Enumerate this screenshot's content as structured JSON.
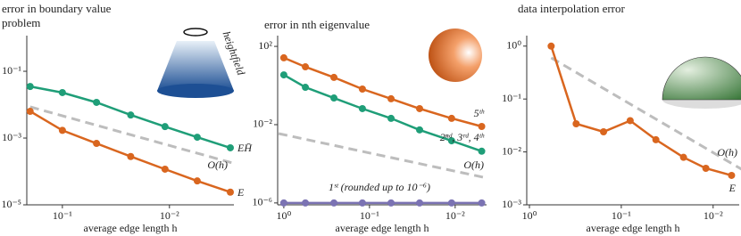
{
  "chart_data": [
    {
      "type": "line",
      "title": "error in boundary value problem",
      "xlabel": "average edge length h",
      "annotations": [
        "heightfield"
      ],
      "xlog": true,
      "ylog": true,
      "xlim": [
        0.215,
        0.0025
      ],
      "ylim": [
        1e-05,
        0.86
      ],
      "xticks": [
        {
          "value": 0.1,
          "label": "10⁻¹"
        },
        {
          "value": 0.01,
          "label": "10⁻²"
        }
      ],
      "yticks": [
        {
          "value": 0.1,
          "label": "10⁻¹"
        },
        {
          "value": 0.001,
          "label": "10⁻³"
        },
        {
          "value": 1e-05,
          "label": "10⁻⁵"
        }
      ],
      "series": [
        {
          "name": "EH̄",
          "color": "#1f9e78",
          "dashed": false,
          "x": [
            0.2,
            0.1,
            0.048,
            0.023,
            0.011,
            0.0055,
            0.0027
          ],
          "values": [
            0.035,
            0.023,
            0.0117,
            0.0049,
            0.0022,
            0.00106,
            0.00051
          ]
        },
        {
          "name": "O(h)",
          "color": "#bdbdbd",
          "dashed": true,
          "x": [
            0.2,
            0.0026
          ],
          "values": [
            0.0086,
            0.00018
          ]
        },
        {
          "name": "E",
          "color": "#d9661f",
          "dashed": false,
          "x": [
            0.2,
            0.1,
            0.048,
            0.023,
            0.011,
            0.0055,
            0.0027
          ],
          "values": [
            0.0063,
            0.0017,
            0.00069,
            0.00028,
            0.000117,
            5.2e-05,
            2.4e-05
          ]
        }
      ]
    },
    {
      "type": "line",
      "title": "error in nth eigenvalue",
      "xlabel": "average edge length h",
      "xlog": true,
      "ylog": true,
      "xlim": [
        1.18,
        0.0043
      ],
      "ylim": [
        8e-07,
        210
      ],
      "xticks": [
        {
          "value": 1,
          "label": "10⁰"
        },
        {
          "value": 0.1,
          "label": "10⁻¹"
        },
        {
          "value": 0.01,
          "label": "10⁻²"
        }
      ],
      "yticks": [
        {
          "value": 100,
          "label": "10²"
        },
        {
          "value": 0.01,
          "label": "10⁻²"
        },
        {
          "value": 1e-06,
          "label": "10⁻⁶"
        }
      ],
      "series": [
        {
          "name": "5ᵗʰ",
          "color": "#d9661f",
          "dashed": false,
          "x": [
            1,
            0.56,
            0.26,
            0.121,
            0.056,
            0.026,
            0.011,
            0.0049
          ],
          "values": [
            26,
            9.0,
            2.6,
            0.66,
            0.21,
            0.066,
            0.021,
            0.0081
          ]
        },
        {
          "name": "2ⁿᵈ, 3ʳᵈ, 4ᵗʰ",
          "color": "#1f9e78",
          "dashed": false,
          "x": [
            1,
            0.56,
            0.26,
            0.121,
            0.056,
            0.026,
            0.011,
            0.0049
          ],
          "values": [
            3.5,
            0.81,
            0.23,
            0.066,
            0.021,
            0.0054,
            0.0015,
            0.00044
          ]
        },
        {
          "name": "O(h)",
          "color": "#bdbdbd",
          "dashed": true,
          "x": [
            1.15,
            0.0043
          ],
          "values": [
            0.0035,
            1.9e-05
          ]
        },
        {
          "name": "1ˢᵗ (rounded up to 10⁻⁶)",
          "color": "#7b73b3",
          "dashed": false,
          "x": [
            1,
            0.56,
            0.26,
            0.121,
            0.056,
            0.026,
            0.011,
            0.0049
          ],
          "values": [
            1e-06,
            1e-06,
            1e-06,
            1e-06,
            1e-06,
            1e-06,
            1e-06,
            1e-06
          ]
        }
      ]
    },
    {
      "type": "line",
      "title": "data interpolation error",
      "xlabel": "average edge length h",
      "xlog": true,
      "ylog": true,
      "xlim": [
        1.07,
        0.0052
      ],
      "ylim": [
        0.001,
        1.3
      ],
      "xticks": [
        {
          "value": 1,
          "label": "10⁰"
        },
        {
          "value": 0.1,
          "label": "10⁻¹"
        },
        {
          "value": 0.01,
          "label": "10⁻²"
        }
      ],
      "yticks": [
        {
          "value": 1,
          "label": "10⁰"
        },
        {
          "value": 0.1,
          "label": "10⁻¹"
        },
        {
          "value": 0.01,
          "label": "10⁻²"
        },
        {
          "value": 0.001,
          "label": "10⁻³"
        }
      ],
      "series": [
        {
          "name": "O(h)",
          "color": "#bdbdbd",
          "dashed": true,
          "x": [
            0.58,
            0.0048
          ],
          "values": [
            0.6,
            0.0046
          ]
        },
        {
          "name": "E",
          "color": "#d9661f",
          "dashed": false,
          "x": [
            0.58,
            0.31,
            0.156,
            0.08,
            0.042,
            0.021,
            0.012,
            0.0063
          ],
          "values": [
            1.0,
            0.034,
            0.024,
            0.039,
            0.017,
            0.0079,
            0.0049,
            0.0036
          ]
        }
      ]
    }
  ]
}
